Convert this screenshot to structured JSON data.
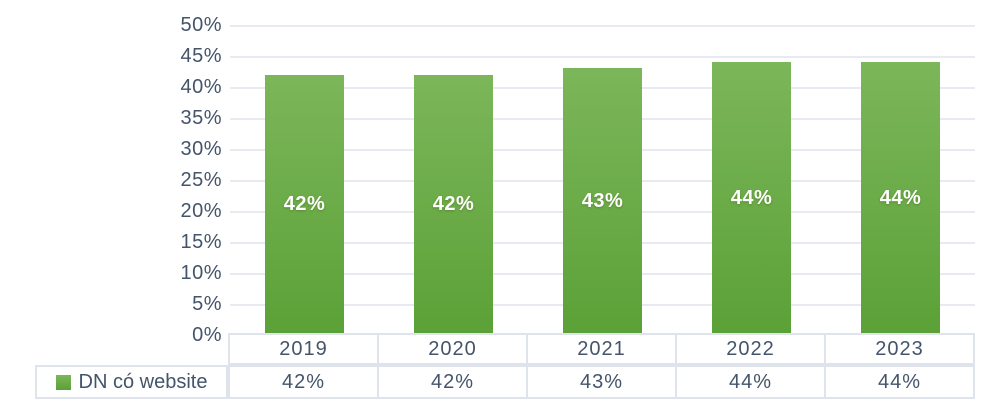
{
  "chart_data": {
    "type": "bar",
    "title": "",
    "xlabel": "",
    "ylabel": "",
    "categories": [
      "2019",
      "2020",
      "2021",
      "2022",
      "2023"
    ],
    "series": [
      {
        "name": "DN có website",
        "values": [
          42,
          42,
          43,
          44,
          44
        ],
        "value_labels": [
          "42%",
          "42%",
          "43%",
          "44%",
          "44%"
        ]
      }
    ],
    "data_table_values": [
      "42%",
      "42%",
      "43%",
      "44%",
      "44%"
    ],
    "ylim": [
      0,
      50
    ],
    "ytick_step": 5,
    "yticks_top_to_bottom": [
      "50%",
      "45%",
      "40%",
      "35%",
      "30%",
      "25%",
      "20%",
      "15%",
      "10%",
      "5%",
      "0%"
    ],
    "grid": true,
    "legend_position": "bottom-left",
    "legend_swatch": "green-square-icon",
    "colors": {
      "bar_top": "#7cb65a",
      "bar_bottom": "#5ba137",
      "bar_label": "#ffffff",
      "axis_text": "#44546a",
      "gridline": "#e7ebf1",
      "table_border": "#dfe3eb"
    }
  }
}
